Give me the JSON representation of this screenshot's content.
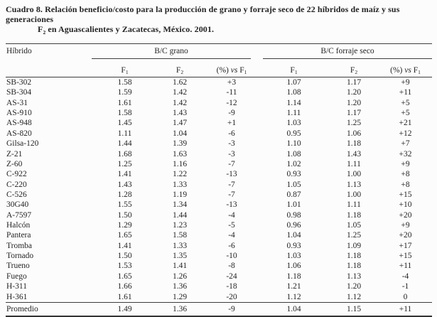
{
  "caption": {
    "line1": "Cuadro 8. Relación beneficio/costo para la producción de grano y forraje seco de 22 híbridos de maíz y sus generaciones",
    "f_base": "F",
    "f_sub": "2",
    "line2_rest": " en Aguascalientes y Zacatecas, México. 2001."
  },
  "table": {
    "hybrid_header": "Híbrido",
    "group_grano": "B/C grano",
    "group_forraje": "B/C forraje seco",
    "sub": {
      "f_base": "F",
      "f1_sub": "1",
      "f2_sub": "2",
      "pct_pre": "(%) ",
      "pct_vs": "vs",
      "pct_post": " F",
      "pct_sub": "1"
    },
    "rows": [
      {
        "hibrido": "SB-302",
        "grano_f1": "1.58",
        "grano_f2": "1.62",
        "grano_pct": "+3",
        "forraje_f1": "1.07",
        "forraje_f2": "1.17",
        "forraje_pct": "+9"
      },
      {
        "hibrido": "SB-304",
        "grano_f1": "1.59",
        "grano_f2": "1.42",
        "grano_pct": "-11",
        "forraje_f1": "1.08",
        "forraje_f2": "1.20",
        "forraje_pct": "+11"
      },
      {
        "hibrido": "AS-31",
        "grano_f1": "1.61",
        "grano_f2": "1.42",
        "grano_pct": "-12",
        "forraje_f1": "1.14",
        "forraje_f2": "1.20",
        "forraje_pct": "+5"
      },
      {
        "hibrido": "AS-910",
        "grano_f1": "1.58",
        "grano_f2": "1.43",
        "grano_pct": "-9",
        "forraje_f1": "1.11",
        "forraje_f2": "1.17",
        "forraje_pct": "+5"
      },
      {
        "hibrido": "AS-948",
        "grano_f1": "1.45",
        "grano_f2": "1.47",
        "grano_pct": "+1",
        "forraje_f1": "1.03",
        "forraje_f2": "1.25",
        "forraje_pct": "+21"
      },
      {
        "hibrido": "AS-820",
        "grano_f1": "1.11",
        "grano_f2": "1.04",
        "grano_pct": "-6",
        "forraje_f1": "0.95",
        "forraje_f2": "1.06",
        "forraje_pct": "+12"
      },
      {
        "hibrido": "Gilsa-120",
        "grano_f1": "1.44",
        "grano_f2": "1.39",
        "grano_pct": "-3",
        "forraje_f1": "1.10",
        "forraje_f2": "1.18",
        "forraje_pct": "+7"
      },
      {
        "hibrido": "Z-21",
        "grano_f1": "1.68",
        "grano_f2": "1.63",
        "grano_pct": "-3",
        "forraje_f1": "1.08",
        "forraje_f2": "1.43",
        "forraje_pct": "+32"
      },
      {
        "hibrido": "Z-60",
        "grano_f1": "1.25",
        "grano_f2": "1.16",
        "grano_pct": "-7",
        "forraje_f1": "1.02",
        "forraje_f2": "1.11",
        "forraje_pct": "+9"
      },
      {
        "hibrido": "C-922",
        "grano_f1": "1.41",
        "grano_f2": "1.22",
        "grano_pct": "-13",
        "forraje_f1": "0.93",
        "forraje_f2": "1.00",
        "forraje_pct": "+8"
      },
      {
        "hibrido": "C-220",
        "grano_f1": "1.43",
        "grano_f2": "1.33",
        "grano_pct": "-7",
        "forraje_f1": "1.05",
        "forraje_f2": "1.13",
        "forraje_pct": "+8"
      },
      {
        "hibrido": "C-526",
        "grano_f1": "1.28",
        "grano_f2": "1.19",
        "grano_pct": "-7",
        "forraje_f1": "0.87",
        "forraje_f2": "1.00",
        "forraje_pct": "+15"
      },
      {
        "hibrido": "30G40",
        "grano_f1": "1.55",
        "grano_f2": "1.34",
        "grano_pct": "-13",
        "forraje_f1": "1.01",
        "forraje_f2": "1.11",
        "forraje_pct": "+10"
      },
      {
        "hibrido": "A-7597",
        "grano_f1": "1.50",
        "grano_f2": "1.44",
        "grano_pct": "-4",
        "forraje_f1": "0.98",
        "forraje_f2": "1.18",
        "forraje_pct": "+20"
      },
      {
        "hibrido": "Halcón",
        "grano_f1": "1.29",
        "grano_f2": "1.23",
        "grano_pct": "-5",
        "forraje_f1": "0.96",
        "forraje_f2": "1.05",
        "forraje_pct": "+9"
      },
      {
        "hibrido": "Pantera",
        "grano_f1": "1.65",
        "grano_f2": "1.58",
        "grano_pct": "-4",
        "forraje_f1": "1.04",
        "forraje_f2": "1.25",
        "forraje_pct": "+20"
      },
      {
        "hibrido": "Tromba",
        "grano_f1": "1.41",
        "grano_f2": "1.33",
        "grano_pct": "-6",
        "forraje_f1": "0.93",
        "forraje_f2": "1.09",
        "forraje_pct": "+17"
      },
      {
        "hibrido": "Tornado",
        "grano_f1": "1.50",
        "grano_f2": "1.35",
        "grano_pct": "-10",
        "forraje_f1": "1.03",
        "forraje_f2": "1.18",
        "forraje_pct": "+15"
      },
      {
        "hibrido": "Trueno",
        "grano_f1": "1.53",
        "grano_f2": "1.41",
        "grano_pct": "-8",
        "forraje_f1": "1.06",
        "forraje_f2": "1.18",
        "forraje_pct": "+11"
      },
      {
        "hibrido": "Fuego",
        "grano_f1": "1.65",
        "grano_f2": "1.26",
        "grano_pct": "-24",
        "forraje_f1": "1.18",
        "forraje_f2": "1.13",
        "forraje_pct": "-4"
      },
      {
        "hibrido": "H-311",
        "grano_f1": "1.66",
        "grano_f2": "1.36",
        "grano_pct": "-18",
        "forraje_f1": "1.21",
        "forraje_f2": "1.20",
        "forraje_pct": "-1"
      },
      {
        "hibrido": "H-361",
        "grano_f1": "1.61",
        "grano_f2": "1.29",
        "grano_pct": "-20",
        "forraje_f1": "1.12",
        "forraje_f2": "1.12",
        "forraje_pct": "0"
      }
    ],
    "summary": {
      "hibrido": "Promedio",
      "grano_f1": "1.49",
      "grano_f2": "1.36",
      "grano_pct": "-9",
      "forraje_f1": "1.04",
      "forraje_f2": "1.15",
      "forraje_pct": "+11"
    }
  }
}
